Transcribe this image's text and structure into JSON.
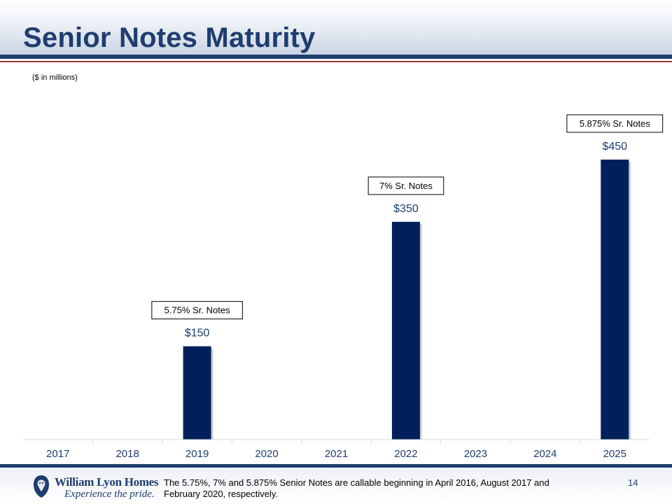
{
  "header": {
    "title": "Senior Notes Maturity"
  },
  "units_note": "($ in millions)",
  "chart_data": {
    "type": "bar",
    "categories": [
      "2017",
      "2018",
      "2019",
      "2020",
      "2021",
      "2022",
      "2023",
      "2024",
      "2025"
    ],
    "values": [
      0,
      0,
      150,
      0,
      0,
      350,
      0,
      0,
      450
    ],
    "data_labels": [
      "",
      "",
      "$150",
      "",
      "",
      "$350",
      "",
      "",
      "$450"
    ],
    "annotations": [
      "",
      "",
      "5.75% Sr. Notes",
      "",
      "",
      "7% Sr. Notes",
      "",
      "",
      "5.875% Sr. Notes"
    ],
    "ylim": [
      0,
      450
    ],
    "grid": false,
    "bar_color": "#00205b"
  },
  "footer": {
    "logo_name": "William Lyon Homes",
    "logo_tagline": "Experience the pride.",
    "footnote": "The 5.75%, 7% and 5.875% Senior Notes are callable beginning in April 2016, August 2017 and February 2020, respectively.",
    "page_number": "14"
  },
  "colors": {
    "title": "#1f3d6e",
    "rule_blue": "#1f3d6e",
    "rule_red": "#a33a3f",
    "bar": "#00205b"
  }
}
